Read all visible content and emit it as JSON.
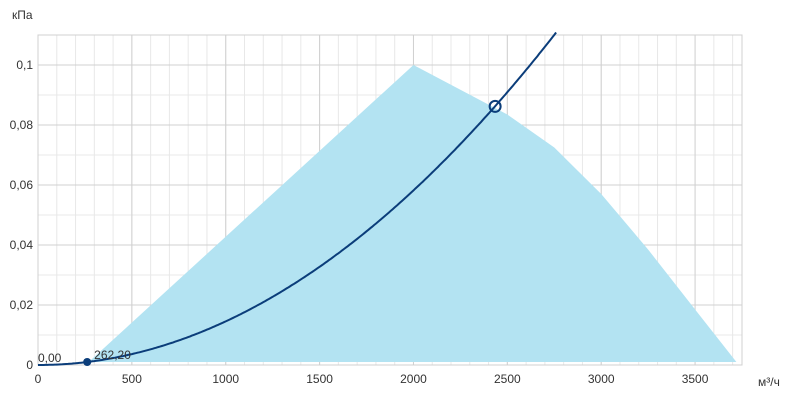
{
  "chart_data": {
    "type": "line",
    "xlabel": "м³/ч",
    "ylabel": "кПа",
    "xlim": [
      0,
      3750
    ],
    "ylim": [
      0,
      0.11
    ],
    "x_ticks": [
      0,
      500,
      1000,
      1500,
      2000,
      2500,
      3000,
      3500
    ],
    "x_tick_labels": [
      "0",
      "500",
      "1000",
      "1500",
      "2000",
      "2500",
      "3000",
      "3500"
    ],
    "y_ticks": [
      0,
      0.02,
      0.04,
      0.06,
      0.08,
      0.1
    ],
    "y_tick_labels": [
      "0",
      "0,02",
      "0,04",
      "0,06",
      "0,08",
      "0,1"
    ],
    "x_minor_step": 100,
    "y_minor_step": 0.01,
    "grid": true,
    "colors": {
      "area": "#b3e3f2",
      "curve": "#0b3d7a",
      "grid_major": "#d0d0d0",
      "grid_minor": "#e8e8e8"
    },
    "working_area": {
      "x": [
        270,
        2000,
        2500,
        2750,
        3000,
        3250,
        3500,
        3720,
        270
      ],
      "y": [
        0.001,
        0.1,
        0.0835,
        0.0725,
        0.057,
        0.0385,
        0.0185,
        0.001,
        0.001
      ]
    },
    "system_curve": {
      "k_coefficient": 1.455e-08,
      "x_end": 2760
    },
    "points": [
      {
        "x": 0,
        "y": 0,
        "label": "0,00",
        "marker": "none"
      },
      {
        "x": 262,
        "y": 0.001,
        "label": "262,20",
        "marker": "filled"
      },
      {
        "x": 2435,
        "y": 0.0862,
        "label": "",
        "marker": "open"
      }
    ]
  }
}
